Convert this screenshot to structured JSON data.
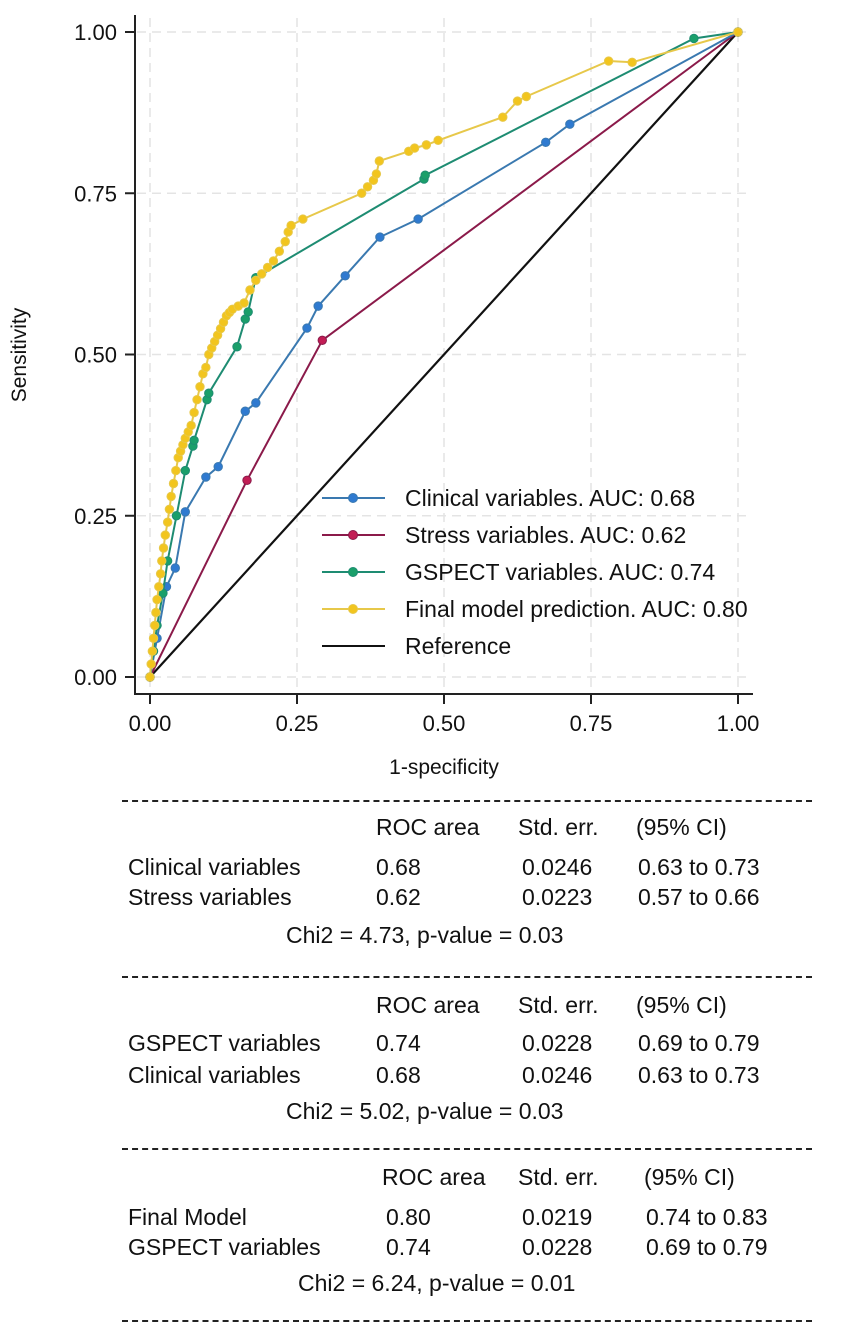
{
  "chart_data": {
    "type": "line",
    "title": "",
    "xlabel": "1-specificity",
    "ylabel": "Sensitivity",
    "xlim": [
      0,
      1
    ],
    "ylim": [
      0,
      1
    ],
    "x_ticks": [
      "0.00",
      "0.25",
      "0.50",
      "0.75",
      "1.00"
    ],
    "y_ticks": [
      "0.00",
      "0.25",
      "0.50",
      "0.75",
      "1.00"
    ],
    "tick_values": [
      0,
      0.25,
      0.5,
      0.75,
      1
    ],
    "grid": true,
    "legend_position": "bottom-right",
    "series": [
      {
        "name": "Reference",
        "legend": "Reference",
        "color": "#111111",
        "markers": false,
        "x": [
          0,
          1
        ],
        "y": [
          0,
          1
        ]
      },
      {
        "name": "Stress variables",
        "legend": "Stress variables. AUC: 0.62",
        "color": "#8b1a4a",
        "marker_color": "#c21d55",
        "markers": true,
        "x": [
          0,
          0.165,
          0.293,
          1
        ],
        "y": [
          0,
          0.305,
          0.522,
          1
        ]
      },
      {
        "name": "Clinical variables",
        "legend": "Clinical variables. AUC: 0.68",
        "color": "#3a79b0",
        "marker_color": "#2f7ad0",
        "markers": true,
        "x": [
          0,
          0.012,
          0.028,
          0.043,
          0.06,
          0.095,
          0.116,
          0.162,
          0.18,
          0.267,
          0.286,
          0.332,
          0.391,
          0.456,
          0.673,
          0.714,
          1
        ],
        "y": [
          0,
          0.06,
          0.14,
          0.169,
          0.256,
          0.31,
          0.326,
          0.412,
          0.425,
          0.541,
          0.575,
          0.622,
          0.682,
          0.71,
          0.829,
          0.857,
          1
        ]
      },
      {
        "name": "GSPECT variables",
        "legend": "GSPECT variables. AUC: 0.74",
        "color": "#1e8c72",
        "marker_color": "#1a9f6a",
        "markers": true,
        "x": [
          0,
          0.006,
          0.012,
          0.022,
          0.03,
          0.045,
          0.06,
          0.073,
          0.075,
          0.097,
          0.1,
          0.148,
          0.162,
          0.167,
          0.18,
          0.466,
          0.468,
          0.925,
          1
        ],
        "y": [
          0,
          0.04,
          0.08,
          0.13,
          0.18,
          0.25,
          0.32,
          0.358,
          0.367,
          0.43,
          0.44,
          0.512,
          0.555,
          0.566,
          0.619,
          0.772,
          0.778,
          0.99,
          1
        ]
      },
      {
        "name": "Final model prediction",
        "legend": "Final model prediction. AUC: 0.80",
        "color": "#e7c84a",
        "marker_color": "#f2c51e",
        "markers": true,
        "x": [
          0,
          0.002,
          0.004,
          0.006,
          0.008,
          0.01,
          0.012,
          0.015,
          0.018,
          0.02,
          0.023,
          0.026,
          0.03,
          0.033,
          0.036,
          0.04,
          0.044,
          0.048,
          0.052,
          0.056,
          0.06,
          0.065,
          0.07,
          0.075,
          0.08,
          0.085,
          0.09,
          0.095,
          0.1,
          0.105,
          0.11,
          0.115,
          0.12,
          0.125,
          0.13,
          0.135,
          0.14,
          0.15,
          0.16,
          0.17,
          0.18,
          0.19,
          0.2,
          0.21,
          0.22,
          0.23,
          0.235,
          0.24,
          0.26,
          0.36,
          0.37,
          0.38,
          0.385,
          0.39,
          0.44,
          0.45,
          0.47,
          0.49,
          0.6,
          0.625,
          0.64,
          0.78,
          0.82,
          1
        ],
        "y": [
          0,
          0.02,
          0.04,
          0.06,
          0.08,
          0.1,
          0.12,
          0.14,
          0.16,
          0.18,
          0.2,
          0.22,
          0.24,
          0.26,
          0.28,
          0.3,
          0.32,
          0.34,
          0.35,
          0.36,
          0.37,
          0.38,
          0.39,
          0.41,
          0.43,
          0.45,
          0.47,
          0.48,
          0.5,
          0.51,
          0.52,
          0.53,
          0.54,
          0.55,
          0.56,
          0.565,
          0.57,
          0.575,
          0.58,
          0.6,
          0.615,
          0.625,
          0.635,
          0.645,
          0.66,
          0.675,
          0.69,
          0.7,
          0.71,
          0.75,
          0.76,
          0.77,
          0.78,
          0.8,
          0.815,
          0.82,
          0.825,
          0.832,
          0.868,
          0.893,
          0.9,
          0.955,
          0.953,
          1
        ]
      }
    ]
  },
  "legend": {
    "items": [
      {
        "label": "Clinical variables. AUC: 0.68",
        "color": "#3a79b0",
        "marker": "#2f7ad0"
      },
      {
        "label": "Stress variables. AUC: 0.62",
        "color": "#8b1a4a",
        "marker": "#c21d55"
      },
      {
        "label": "GSPECT variables. AUC: 0.74",
        "color": "#1e8c72",
        "marker": "#1a9f6a"
      },
      {
        "label": "Final model prediction. AUC: 0.80",
        "color": "#e7c84a",
        "marker": "#f2c51e"
      },
      {
        "label": "Reference",
        "color": "#111111",
        "marker": ""
      }
    ]
  },
  "comparisons": [
    {
      "header": [
        "ROC area",
        "Std. err.",
        "(95% CI)"
      ],
      "rows": [
        {
          "name": "Clinical variables",
          "roc_area": "0.68",
          "std_err": "0.0246",
          "ci": "0.63 to 0.73"
        },
        {
          "name": "Stress variables",
          "roc_area": "0.62",
          "std_err": "0.0223",
          "ci": "0.57 to 0.66"
        }
      ],
      "chi": "Chi2 = 4.73, p-value =  0.03"
    },
    {
      "header": [
        "ROC area",
        "Std. err.",
        "(95% CI)"
      ],
      "rows": [
        {
          "name": "GSPECT variables",
          "roc_area": "0.74",
          "std_err": "0.0228",
          "ci": "0.69 to 0.79"
        },
        {
          "name": "Clinical variables",
          "roc_area": "0.68",
          "std_err": "0.0246",
          "ci": "0.63 to 0.73"
        }
      ],
      "chi": "Chi2 = 5.02, p-value =  0.03"
    },
    {
      "header": [
        "ROC area",
        "Std. err.",
        "(95% CI)"
      ],
      "rows": [
        {
          "name": "Final Model",
          "roc_area": "0.80",
          "std_err": "0.0219",
          "ci": "0.74 to 0.83"
        },
        {
          "name": "GSPECT variables",
          "roc_area": "0.74",
          "std_err": "0.0228",
          "ci": "0.69 to 0.79"
        }
      ],
      "chi": "Chi2 = 6.24, p-value = 0.01"
    }
  ]
}
